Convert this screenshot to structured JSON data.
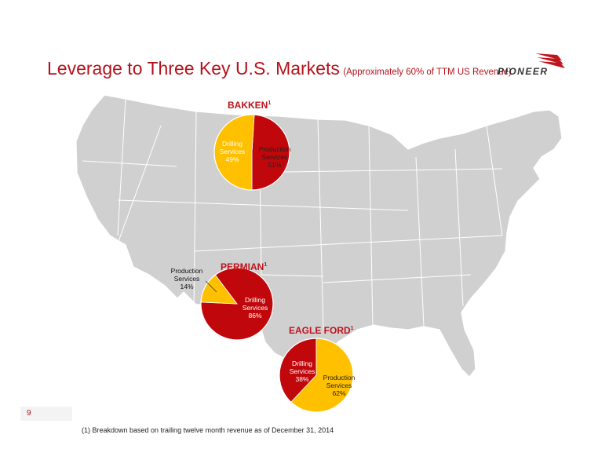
{
  "header": {
    "title": "Leverage to Three Key U.S. Markets",
    "subtitle": "(Approximately 60% of TTM US Revenue)",
    "logo_text": "PIONEER"
  },
  "colors": {
    "drilling": "#c0070b",
    "production": "#ffc000",
    "title": "#b5121b",
    "map": "#d0d0d0"
  },
  "chart_data": [
    {
      "type": "pie",
      "title": "BAKKEN",
      "title_sup": "1",
      "slices": [
        {
          "label_lines": [
            "Drilling",
            "Services",
            "49%"
          ],
          "value": 49
        },
        {
          "label_lines": [
            "Production",
            "Services",
            "51%"
          ],
          "value": 51
        }
      ]
    },
    {
      "type": "pie",
      "title": "PERMIAN",
      "title_sup": "1",
      "slices": [
        {
          "label_lines": [
            "Drilling",
            "Services",
            "86%"
          ],
          "value": 86
        },
        {
          "label_lines": [
            "Production",
            "Services",
            "14%"
          ],
          "value": 14
        }
      ]
    },
    {
      "type": "pie",
      "title": "EAGLE FORD",
      "title_sup": "1",
      "slices": [
        {
          "label_lines": [
            "Drilling",
            "Services",
            "38%"
          ],
          "value": 38
        },
        {
          "label_lines": [
            "Production",
            "Services",
            "62%"
          ],
          "value": 62
        }
      ]
    }
  ],
  "footer": {
    "page_number": "9",
    "footnote": "(1)  Breakdown based on trailing twelve month revenue as of December 31, 2014"
  }
}
